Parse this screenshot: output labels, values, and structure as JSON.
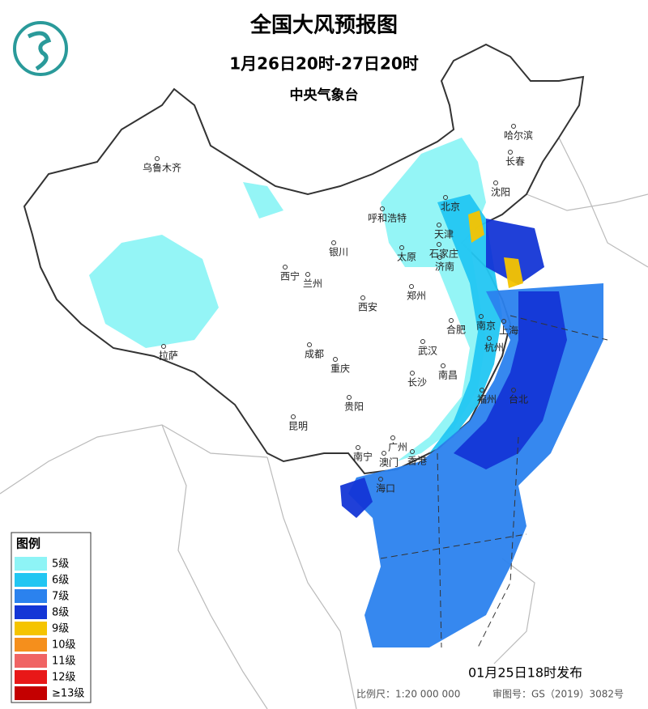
{
  "header": {
    "title": "全国大风预报图",
    "period": "1月26日20时-27日20时",
    "issuer": "中央气象台"
  },
  "cities": [
    "乌鲁木齐",
    "哈尔滨",
    "长春",
    "沈阳",
    "北京",
    "呼和浩特",
    "天津",
    "银川",
    "石家庄",
    "太原",
    "济南",
    "西宁",
    "兰州",
    "郑州",
    "西安",
    "南京",
    "上海",
    "合肥",
    "杭州",
    "成都",
    "武汉",
    "重庆",
    "拉萨",
    "南昌",
    "长沙",
    "福州",
    "台北",
    "贵阳",
    "昆明",
    "南宁",
    "广州",
    "香港",
    "澳门",
    "海口"
  ],
  "legend": {
    "title": "图例",
    "items": [
      {
        "label": "5级",
        "color": "#8ef4f6"
      },
      {
        "label": "6级",
        "color": "#22c6f2"
      },
      {
        "label": "7级",
        "color": "#2b82ee"
      },
      {
        "label": "8级",
        "color": "#1436d6"
      },
      {
        "label": "9级",
        "color": "#f5c400"
      },
      {
        "label": "10级",
        "color": "#f58f1c"
      },
      {
        "label": "11级",
        "color": "#f06464"
      },
      {
        "label": "12级",
        "color": "#e81818"
      },
      {
        "label": "≥13级",
        "color": "#c40000"
      }
    ]
  },
  "footer": {
    "issued": "01月25日18时发布",
    "scale": "比例尺：1:20 000 000",
    "review": "审图号：GS（2019）3082号"
  }
}
